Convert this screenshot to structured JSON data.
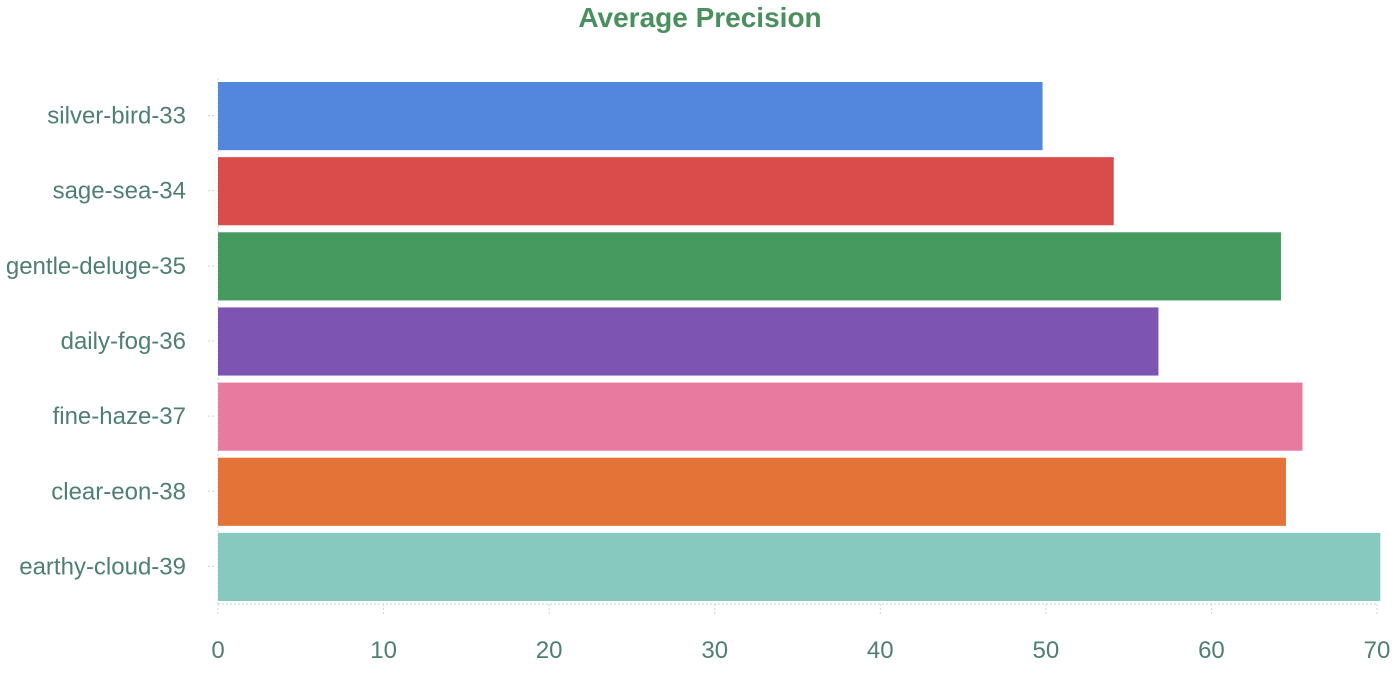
{
  "theme": {
    "title_color": "#4a8f5e",
    "label_color": "#4f7f73",
    "axis_color": "#c8d8d0"
  },
  "chart_data": {
    "type": "bar",
    "orientation": "horizontal",
    "title": "Average Precision",
    "xlabel": "",
    "ylabel": "",
    "xlim": [
      0,
      70
    ],
    "x_ticks": [
      0,
      10,
      20,
      30,
      40,
      50,
      60,
      70
    ],
    "grid": false,
    "legend": "none",
    "categories": [
      "silver-bird-33",
      "sage-sea-34",
      "gentle-deluge-35",
      "daily-fog-36",
      "fine-haze-37",
      "clear-eon-38",
      "earthy-cloud-39"
    ],
    "values": [
      49.8,
      54.1,
      64.2,
      56.8,
      65.5,
      64.5,
      70.2
    ],
    "colors": [
      "#5387dd",
      "#da4c4c",
      "#479a5f",
      "#7d54b2",
      "#e87a9f",
      "#e47338",
      "#87c9be"
    ]
  }
}
